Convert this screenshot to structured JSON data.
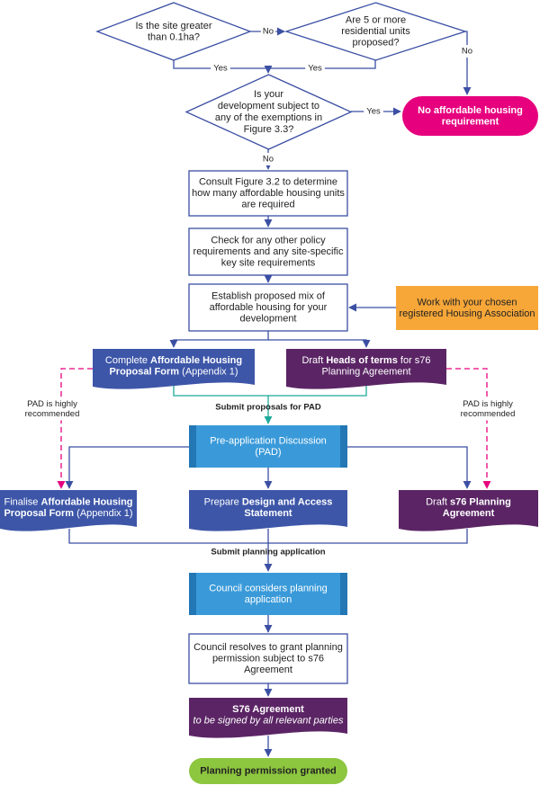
{
  "nodes": [
    {
      "lines": [
        [
          "Is the site greater"
        ],
        [
          "than 0.1ha?"
        ]
      ]
    },
    {
      "lines": [
        [
          "Are 5 or more"
        ],
        [
          "residential units"
        ],
        [
          "proposed?"
        ]
      ]
    },
    {
      "lines": [
        [
          "Is your"
        ],
        [
          "development subject to"
        ],
        [
          "any of the exemptions in"
        ],
        [
          "Figure 3.3?"
        ]
      ]
    },
    {
      "lines": [
        [
          {
            "text": "No affordable housing",
            "bold": true
          }
        ],
        [
          {
            "text": "requirement",
            "bold": true
          }
        ]
      ]
    },
    {
      "lines": [
        [
          "Consult Figure 3.2 to determine"
        ],
        [
          "how many affordable housing units"
        ],
        [
          "are required"
        ]
      ]
    },
    {
      "lines": [
        [
          "Check for any other policy"
        ],
        [
          "requirements and any site-specific"
        ],
        [
          "key site requirements"
        ]
      ]
    },
    {
      "lines": [
        [
          "Establish proposed mix of"
        ],
        [
          "affordable housing for your"
        ],
        [
          "development"
        ]
      ]
    },
    {
      "lines": [
        [
          "Work with your chosen"
        ],
        [
          "registered Housing Association"
        ]
      ]
    },
    {
      "lines": [
        [
          "Complete ",
          {
            "text": "Affordable Housing",
            "bold": true
          }
        ],
        [
          {
            "text": "Proposal Form",
            "bold": true
          },
          " (Appendix 1)"
        ]
      ]
    },
    {
      "lines": [
        [
          "Draft ",
          {
            "text": "Heads of terms",
            "bold": true
          },
          " for s76"
        ],
        [
          "Planning Agreement"
        ]
      ]
    },
    {
      "lines": [
        [
          "Pre-application Discussion"
        ],
        [
          "(PAD)"
        ]
      ]
    },
    {
      "lines": [
        [
          "Finalise ",
          {
            "text": "Affordable Housing",
            "bold": true
          }
        ],
        [
          {
            "text": "Proposal Form",
            "bold": true
          },
          " (Appendix 1)"
        ]
      ]
    },
    {
      "lines": [
        [
          "Prepare ",
          {
            "text": "Design and Access",
            "bold": true
          }
        ],
        [
          {
            "text": "Statement",
            "bold": true
          }
        ]
      ]
    },
    {
      "lines": [
        [
          "Draft ",
          {
            "text": "s76 Planning",
            "bold": true
          }
        ],
        [
          {
            "text": "Agreement",
            "bold": true
          }
        ]
      ]
    },
    {
      "lines": [
        [
          "Council considers planning"
        ],
        [
          "application"
        ]
      ]
    },
    {
      "lines": [
        [
          "Council resolves to grant planning"
        ],
        [
          "permission subject to s76"
        ],
        [
          "Agreement"
        ]
      ]
    },
    {
      "lines": [
        [
          {
            "text": "S76 Agreement",
            "bold": true
          }
        ],
        [
          {
            "text": "to be signed by all relevant parties",
            "italic": true
          }
        ]
      ]
    },
    {
      "lines": [
        [
          {
            "text": "Planning permission granted",
            "bold": true
          }
        ]
      ]
    }
  ],
  "edge_labels": [
    [
      "No"
    ],
    [
      "No"
    ],
    [
      "Yes"
    ],
    [
      "Yes"
    ],
    [
      "Yes"
    ],
    [
      "No"
    ],
    [
      "Submit proposals for PAD"
    ],
    [
      "PAD is highly",
      "recommended"
    ],
    [
      "PAD is highly",
      "recommended"
    ],
    [
      "Submit planning application"
    ]
  ]
}
